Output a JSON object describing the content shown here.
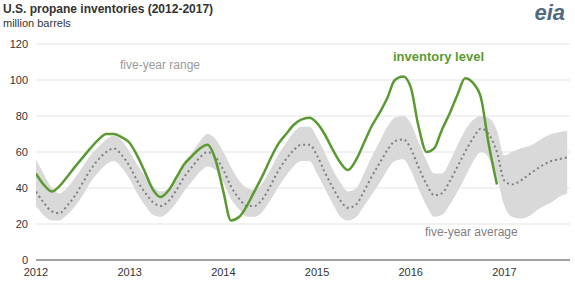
{
  "chart_data": {
    "type": "line",
    "title": "U.S. propane inventories (2012-2017)",
    "subtitle": "million barrels",
    "logo": "eia",
    "x": [
      2012,
      2012.08,
      2012.17,
      2012.25,
      2012.33,
      2012.42,
      2012.5,
      2012.58,
      2012.67,
      2012.75,
      2012.83,
      2012.92,
      2013,
      2013.08,
      2013.17,
      2013.25,
      2013.33,
      2013.42,
      2013.5,
      2013.58,
      2013.67,
      2013.75,
      2013.83,
      2013.92,
      2014,
      2014.08,
      2014.17,
      2014.25,
      2014.33,
      2014.42,
      2014.5,
      2014.58,
      2014.67,
      2014.75,
      2014.83,
      2014.92,
      2015,
      2015.08,
      2015.17,
      2015.25,
      2015.33,
      2015.42,
      2015.5,
      2015.58,
      2015.67,
      2015.75,
      2015.83,
      2015.92,
      2016,
      2016.08,
      2016.17,
      2016.25,
      2016.33,
      2016.42,
      2016.5,
      2016.58,
      2016.67,
      2016.75,
      2016.83,
      2016.92,
      2017,
      2017.08,
      2017.17,
      2017.25,
      2017.33,
      2017.42,
      2017.5,
      2017.58,
      2017.67
    ],
    "series": [
      {
        "name": "five-year range",
        "type": "area",
        "color": "#d9d9d9",
        "values": [
          [
            30,
            56
          ],
          [
            25,
            48
          ],
          [
            22,
            40
          ],
          [
            22,
            37
          ],
          [
            25,
            40
          ],
          [
            30,
            46
          ],
          [
            36,
            52
          ],
          [
            43,
            58
          ],
          [
            49,
            63
          ],
          [
            53,
            67
          ],
          [
            55,
            69
          ],
          [
            51,
            66
          ],
          [
            45,
            60
          ],
          [
            37,
            53
          ],
          [
            30,
            46
          ],
          [
            25,
            41
          ],
          [
            24,
            38
          ],
          [
            27,
            40
          ],
          [
            32,
            46
          ],
          [
            38,
            54
          ],
          [
            44,
            60
          ],
          [
            49,
            66
          ],
          [
            52,
            70
          ],
          [
            50,
            67
          ],
          [
            43,
            60
          ],
          [
            34,
            52
          ],
          [
            28,
            44
          ],
          [
            24,
            40
          ],
          [
            24,
            39
          ],
          [
            27,
            43
          ],
          [
            33,
            50
          ],
          [
            40,
            58
          ],
          [
            47,
            65
          ],
          [
            52,
            71
          ],
          [
            55,
            74
          ],
          [
            55,
            74
          ],
          [
            48,
            68
          ],
          [
            40,
            60
          ],
          [
            31,
            50
          ],
          [
            24,
            43
          ],
          [
            22,
            38
          ],
          [
            24,
            40
          ],
          [
            30,
            48
          ],
          [
            36,
            57
          ],
          [
            43,
            66
          ],
          [
            50,
            74
          ],
          [
            55,
            79
          ],
          [
            56,
            80
          ],
          [
            50,
            76
          ],
          [
            40,
            66
          ],
          [
            30,
            55
          ],
          [
            24,
            48
          ],
          [
            25,
            48
          ],
          [
            31,
            55
          ],
          [
            38,
            64
          ],
          [
            46,
            72
          ],
          [
            55,
            78
          ],
          [
            60,
            80
          ],
          [
            57,
            79
          ],
          [
            46,
            72
          ],
          [
            30,
            58
          ],
          [
            24,
            60
          ],
          [
            23,
            62
          ],
          [
            24,
            63
          ],
          [
            27,
            65
          ],
          [
            30,
            68
          ],
          [
            32,
            70
          ],
          [
            35,
            71
          ],
          [
            37,
            72
          ]
        ]
      },
      {
        "name": "five-year average",
        "type": "line",
        "color": "#7f7f7f",
        "line_style": "dotted",
        "values": [
          38,
          32,
          27,
          26,
          30,
          36,
          43,
          50,
          56,
          60,
          62,
          58,
          52,
          44,
          37,
          32,
          30,
          33,
          39,
          46,
          52,
          57,
          60,
          57,
          50,
          41,
          34,
          30,
          30,
          34,
          41,
          49,
          56,
          61,
          64,
          64,
          58,
          49,
          40,
          33,
          29,
          31,
          38,
          46,
          54,
          61,
          66,
          67,
          62,
          52,
          42,
          36,
          37,
          44,
          52,
          60,
          68,
          73,
          70,
          60,
          44,
          42,
          44,
          47,
          50,
          53,
          55,
          56,
          57
        ]
      },
      {
        "name": "inventory level",
        "type": "line",
        "color": "#5b9a32",
        "line_style": "solid",
        "values": [
          48,
          42,
          38,
          41,
          46,
          52,
          57,
          62,
          67,
          70,
          70,
          68,
          65,
          58,
          48,
          39,
          35,
          39,
          46,
          53,
          58,
          62,
          64,
          55,
          38,
          22,
          24,
          30,
          38,
          47,
          56,
          64,
          70,
          75,
          78,
          79,
          76,
          70,
          61,
          54,
          50,
          56,
          65,
          74,
          82,
          90,
          100,
          102,
          96,
          75,
          60,
          62,
          72,
          82,
          92,
          101,
          98,
          90,
          65,
          42,
          null,
          null,
          null,
          null,
          null,
          null,
          null,
          null,
          null
        ]
      }
    ],
    "xlim": [
      2012,
      2017.7
    ],
    "xticks": [
      2012,
      2013,
      2014,
      2015,
      2016,
      2017
    ],
    "ylim": [
      0,
      120
    ],
    "yticks": [
      0,
      20,
      40,
      60,
      80,
      100,
      120
    ],
    "grid": true
  }
}
